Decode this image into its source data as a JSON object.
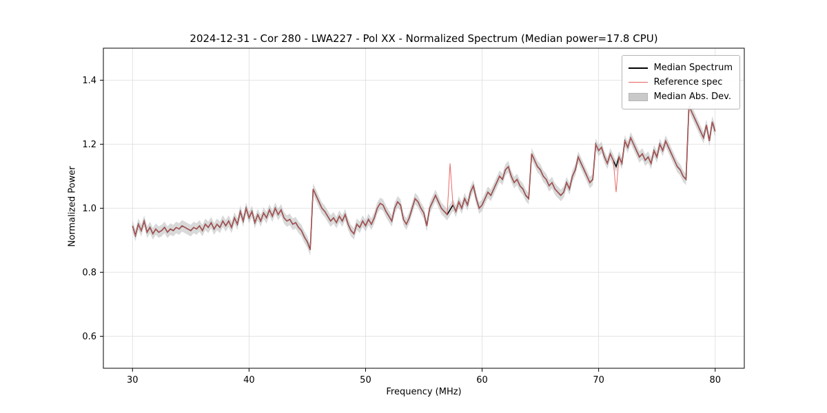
{
  "figure": {
    "title": "2024-12-31 - Cor 280 - LWA227 - Pol XX - Normalized Spectrum (Median power=17.8 CPU)",
    "xlabel": "Frequency (MHz)",
    "ylabel": "Normalized Power"
  },
  "legend": {
    "items": [
      {
        "label": "Median Spectrum",
        "color": "#000000",
        "type": "line"
      },
      {
        "label": "Reference spec",
        "color": "#e86060",
        "type": "line"
      },
      {
        "label": "Median Abs. Dev.",
        "color": "#c9c9c9",
        "type": "patch"
      }
    ]
  },
  "chart_data": {
    "type": "line",
    "title": "2024-12-31 - Cor 280 - LWA227 - Pol XX - Normalized Spectrum (Median power=17.8 CPU)",
    "xlabel": "Frequency (MHz)",
    "ylabel": "Normalized Power",
    "xlim": [
      27.5,
      82.5
    ],
    "ylim": [
      0.5,
      1.5
    ],
    "xticks": [
      30,
      40,
      50,
      60,
      70,
      80
    ],
    "yticks": [
      0.6,
      0.8,
      1.0,
      1.2,
      1.4
    ],
    "grid": true,
    "legend_position": "upper right",
    "colors": {
      "median": "#000000",
      "reference": "#e86060",
      "mad_band": "#aaaaaa",
      "grid": "#dcdcdc",
      "frame": "#000000"
    },
    "x_start": 30.0,
    "dx": 0.25,
    "mad_halfwidth": 0.018,
    "series": [
      {
        "name": "Median Spectrum",
        "values": [
          0.945,
          0.915,
          0.95,
          0.93,
          0.96,
          0.925,
          0.94,
          0.92,
          0.935,
          0.925,
          0.93,
          0.94,
          0.925,
          0.935,
          0.93,
          0.94,
          0.935,
          0.945,
          0.94,
          0.935,
          0.93,
          0.94,
          0.935,
          0.945,
          0.93,
          0.95,
          0.94,
          0.955,
          0.935,
          0.95,
          0.94,
          0.96,
          0.945,
          0.96,
          0.94,
          0.97,
          0.95,
          0.99,
          0.96,
          1.0,
          0.97,
          0.99,
          0.955,
          0.98,
          0.96,
          0.985,
          0.97,
          0.995,
          0.975,
          1.0,
          0.98,
          0.995,
          0.97,
          0.96,
          0.965,
          0.95,
          0.955,
          0.94,
          0.93,
          0.91,
          0.895,
          0.87,
          1.06,
          1.04,
          1.02,
          1.0,
          0.99,
          0.975,
          0.96,
          0.97,
          0.955,
          0.975,
          0.96,
          0.98,
          0.95,
          0.93,
          0.92,
          0.95,
          0.94,
          0.96,
          0.945,
          0.965,
          0.95,
          0.97,
          1.0,
          1.015,
          1.01,
          0.99,
          0.975,
          0.96,
          1.0,
          1.02,
          1.01,
          0.965,
          0.95,
          0.97,
          1.0,
          1.03,
          1.02,
          1.0,
          0.985,
          0.945,
          1.0,
          1.02,
          1.04,
          1.02,
          1.0,
          0.99,
          0.98,
          0.995,
          1.01,
          0.99,
          1.02,
          1.0,
          1.03,
          1.01,
          1.05,
          1.07,
          1.03,
          1.0,
          1.01,
          1.03,
          1.05,
          1.04,
          1.06,
          1.08,
          1.1,
          1.09,
          1.12,
          1.13,
          1.1,
          1.08,
          1.09,
          1.07,
          1.06,
          1.04,
          1.03,
          1.17,
          1.15,
          1.13,
          1.12,
          1.1,
          1.09,
          1.07,
          1.08,
          1.06,
          1.05,
          1.04,
          1.05,
          1.08,
          1.06,
          1.1,
          1.12,
          1.16,
          1.14,
          1.12,
          1.1,
          1.08,
          1.09,
          1.2,
          1.18,
          1.19,
          1.16,
          1.14,
          1.17,
          1.15,
          1.13,
          1.16,
          1.14,
          1.21,
          1.19,
          1.22,
          1.2,
          1.18,
          1.16,
          1.17,
          1.15,
          1.16,
          1.14,
          1.18,
          1.16,
          1.2,
          1.18,
          1.21,
          1.19,
          1.17,
          1.15,
          1.13,
          1.12,
          1.1,
          1.09,
          1.32,
          1.3,
          1.28,
          1.26,
          1.24,
          1.22,
          1.26,
          1.21,
          1.27,
          1.24
        ]
      },
      {
        "name": "Reference spec",
        "same_as_median_except": true,
        "overrides": [
          {
            "x": 57.25,
            "value": 1.14
          },
          {
            "x": 71.5,
            "value": 1.05
          }
        ]
      }
    ]
  }
}
